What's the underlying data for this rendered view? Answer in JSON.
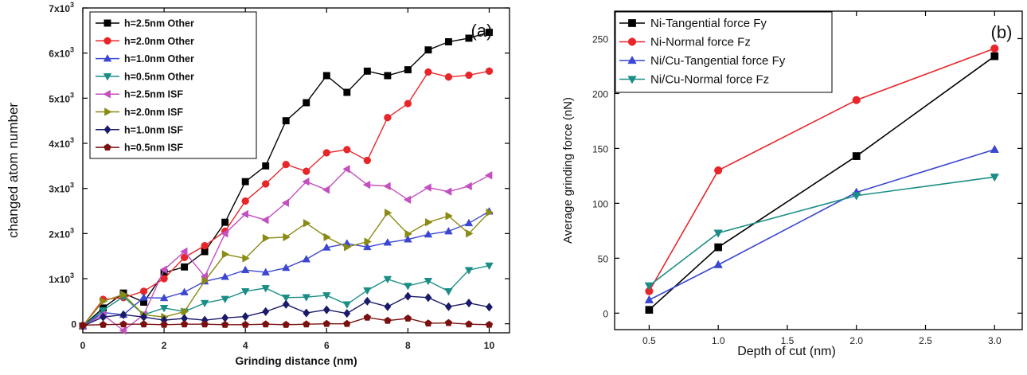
{
  "chart_data": [
    {
      "type": "line",
      "panel_label": "(a)",
      "xlabel": "Grinding distance (nm)",
      "ylabel": "changed atom number",
      "xlim": [
        0,
        10.5
      ],
      "ylim": [
        -200,
        7000
      ],
      "x_ticks": [
        0,
        2,
        4,
        6,
        8,
        10
      ],
      "x_tick_labels": [
        "0",
        "2",
        "4",
        "6",
        "8",
        "10"
      ],
      "y_ticks": [
        0,
        1000,
        2000,
        3000,
        4000,
        5000,
        6000,
        7000
      ],
      "y_tick_labels": [
        "0",
        "1x10",
        "2x10",
        "3x10",
        "4x10",
        "5x10",
        "6x10",
        "7x10"
      ],
      "y_tick_exponent": "3",
      "legend_position": "top-left",
      "x": [
        0,
        0.5,
        1,
        1.5,
        2,
        2.5,
        3,
        3.5,
        4,
        4.5,
        5,
        5.5,
        6,
        6.5,
        7,
        7.5,
        8,
        8.5,
        9,
        9.5,
        10
      ],
      "series": [
        {
          "name": "h=2.5nm Other",
          "color": "#000000",
          "marker": "square",
          "values": [
            -50,
            350,
            680,
            480,
            1130,
            1260,
            1600,
            2250,
            3150,
            3500,
            4500,
            4900,
            5500,
            5130,
            5600,
            5500,
            5630,
            6070,
            6250,
            6330,
            6460
          ]
        },
        {
          "name": "h=2.0nm Other",
          "color": "#e8262a",
          "marker": "circle",
          "values": [
            -50,
            540,
            580,
            720,
            1000,
            1470,
            1730,
            2050,
            2720,
            3100,
            3530,
            3380,
            3790,
            3860,
            3620,
            4570,
            4880,
            5580,
            5470,
            5510,
            5600
          ]
        },
        {
          "name": "h=1.0nm Other",
          "color": "#3b47d0",
          "marker": "triangle-up",
          "values": [
            -50,
            250,
            200,
            580,
            570,
            700,
            940,
            1040,
            1190,
            1140,
            1240,
            1430,
            1690,
            1780,
            1700,
            1800,
            1870,
            1980,
            2050,
            2230,
            2490
          ]
        },
        {
          "name": "h=0.5nm Other",
          "color": "#1a8e86",
          "marker": "triangle-down",
          "values": [
            -50,
            300,
            600,
            200,
            350,
            270,
            460,
            550,
            720,
            790,
            580,
            590,
            630,
            430,
            740,
            990,
            840,
            950,
            720,
            1190,
            1290
          ]
        },
        {
          "name": "h=2.5nm ISF",
          "color": "#c44fc0",
          "marker": "triangle-left",
          "values": [
            -50,
            200,
            -150,
            200,
            1200,
            1600,
            1050,
            2000,
            2430,
            2300,
            2680,
            3150,
            2970,
            3430,
            3080,
            3050,
            2750,
            3020,
            2930,
            3050,
            3290
          ]
        },
        {
          "name": "h=2.0nm ISF",
          "color": "#8a8a14",
          "marker": "triangle-right",
          "values": [
            -50,
            500,
            650,
            200,
            150,
            270,
            950,
            1540,
            1450,
            1900,
            1920,
            2230,
            1920,
            1700,
            1820,
            2460,
            1990,
            2250,
            2390,
            2000,
            2470
          ]
        },
        {
          "name": "h=1.0nm ISF",
          "color": "#1a1a6a",
          "marker": "diamond",
          "values": [
            -50,
            150,
            200,
            150,
            80,
            120,
            80,
            130,
            160,
            270,
            430,
            240,
            310,
            230,
            500,
            380,
            610,
            580,
            380,
            460,
            370
          ]
        },
        {
          "name": "h=0.5nm ISF",
          "color": "#7a1010",
          "marker": "pentagon",
          "values": [
            -30,
            -20,
            -10,
            -10,
            -20,
            -10,
            -10,
            -20,
            -20,
            -10,
            -20,
            -10,
            0,
            0,
            140,
            70,
            120,
            10,
            20,
            -10,
            -20
          ]
        }
      ]
    },
    {
      "type": "line",
      "panel_label": "(b)",
      "xlabel": "Depth of cut (nm)",
      "ylabel": "Average grinding force (nN)",
      "xlim": [
        0.25,
        3.2
      ],
      "ylim": [
        -15,
        275
      ],
      "x_ticks": [
        0.5,
        1.0,
        1.5,
        2.0,
        2.5,
        3.0
      ],
      "x_tick_labels": [
        "0.5",
        "1.0",
        "1.5",
        "2.0",
        "2.5",
        "3.0"
      ],
      "y_ticks": [
        0,
        50,
        100,
        150,
        200,
        250
      ],
      "y_tick_labels": [
        "0",
        "50",
        "100",
        "150",
        "200",
        "250"
      ],
      "legend_position": "top-left",
      "x": [
        0.5,
        1.0,
        2.0,
        3.0
      ],
      "series": [
        {
          "name": "Ni-Tangential force Fy",
          "color": "#000000",
          "marker": "square",
          "values": [
            3,
            60,
            143,
            234
          ]
        },
        {
          "name": "Ni-Normal force Fz",
          "color": "#e8262a",
          "marker": "circle",
          "values": [
            20,
            130,
            194,
            241
          ]
        },
        {
          "name": "Ni/Cu-Tangential force Fy",
          "color": "#3b47d0",
          "marker": "triangle-up",
          "values": [
            12,
            44,
            110,
            149
          ]
        },
        {
          "name": "Ni/Cu-Normal force Fz",
          "color": "#1a8e86",
          "marker": "triangle-down",
          "values": [
            25,
            73,
            107,
            124
          ]
        }
      ]
    }
  ]
}
